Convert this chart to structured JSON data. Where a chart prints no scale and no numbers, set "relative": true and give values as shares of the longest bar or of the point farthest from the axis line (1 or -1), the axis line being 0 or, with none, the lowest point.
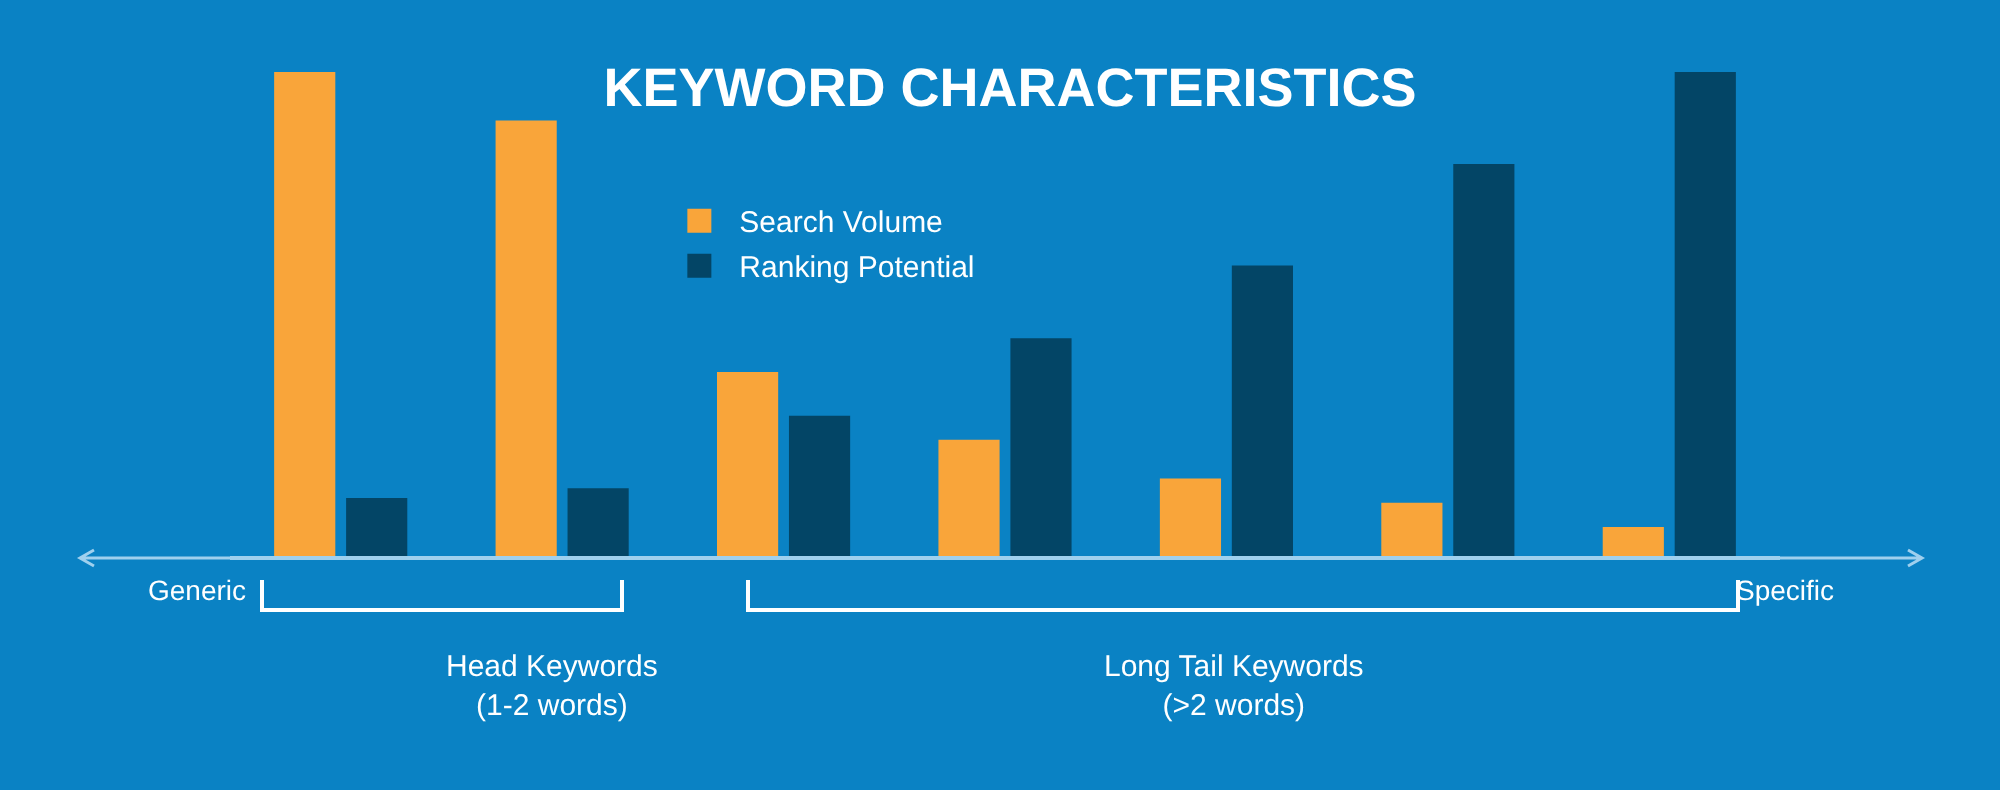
{
  "chart_data": {
    "type": "bar",
    "title": "KEYWORD CHARACTERISTICS",
    "relative": true,
    "categories": [
      null,
      null,
      null,
      null,
      null,
      null,
      null
    ],
    "series": [
      {
        "name": "Search Volume",
        "color": "#f9a53a",
        "values": [
          1,
          0.9,
          0.38,
          0.24,
          0.16,
          0.11,
          0.06
        ]
      },
      {
        "name": "Ranking Potential",
        "color": "#034566",
        "values": [
          0.12,
          0.14,
          0.29,
          0.45,
          0.6,
          0.81,
          1
        ]
      }
    ],
    "annotations": [
      "Generic",
      "Specific",
      "Head Keywords\n(1-2 words)",
      "Long Tail Keywords\n(>2 words)"
    ],
    "legend": "top"
  }
}
